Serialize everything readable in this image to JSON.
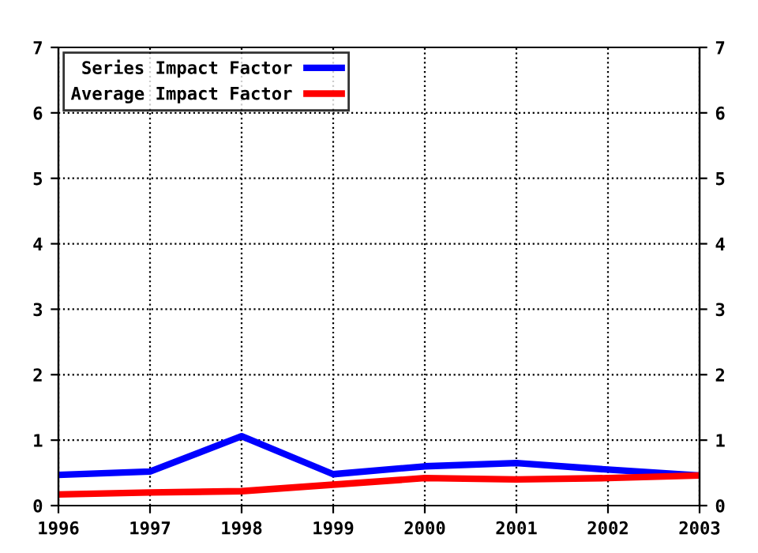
{
  "chart_data": {
    "type": "line",
    "x": [
      1996,
      1997,
      1998,
      1999,
      2000,
      2001,
      2002,
      2003
    ],
    "xlim": [
      1996,
      2003
    ],
    "xticks": [
      1996,
      1997,
      1998,
      1999,
      2000,
      2001,
      2002,
      2003
    ],
    "ylim": [
      0,
      7
    ],
    "yticks": [
      0,
      1,
      2,
      3,
      4,
      5,
      6,
      7
    ],
    "y2lim": [
      0,
      7
    ],
    "y2ticks": [
      0,
      1,
      2,
      3,
      4,
      5,
      6,
      7
    ],
    "series": [
      {
        "name": "Series Impact Factor",
        "color": "#0000ff",
        "values": [
          0.47,
          0.52,
          1.06,
          0.48,
          0.6,
          0.65,
          0.55,
          0.46
        ]
      },
      {
        "name": "Average Impact Factor",
        "color": "#ff0000",
        "values": [
          0.17,
          0.2,
          0.22,
          0.32,
          0.42,
          0.4,
          0.42,
          0.46
        ]
      }
    ],
    "grid": true,
    "legend": "top left",
    "line_style": "solid",
    "marker": "none"
  }
}
